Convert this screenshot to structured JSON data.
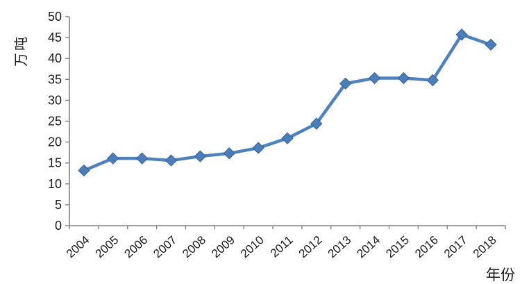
{
  "chart_data": {
    "type": "line",
    "title": "",
    "categories": [
      "2004",
      "2005",
      "2006",
      "2007",
      "2008",
      "2009",
      "2010",
      "2011",
      "2012",
      "2013",
      "2014",
      "2015",
      "2016",
      "2017",
      "2018"
    ],
    "values": [
      13.2,
      16.1,
      16.1,
      15.6,
      16.6,
      17.3,
      18.6,
      20.9,
      24.4,
      34.0,
      35.3,
      35.3,
      34.8,
      45.7,
      43.3
    ],
    "xlabel": "年份",
    "ylabel": "万吨",
    "ylim": [
      0,
      50
    ],
    "ytick_step": 5,
    "ytick_labels": [
      "0",
      "5",
      "10",
      "15",
      "20",
      "25",
      "30",
      "35",
      "40",
      "45",
      "50"
    ],
    "grid": false,
    "legend_position": "none",
    "marker": "diamond",
    "colors": {
      "line": "#4F81BD",
      "marker_fill": "#4A7EBB",
      "marker_edge": "#3A6191",
      "axis": "#808080",
      "tick_label": "#1A1A1A"
    }
  }
}
